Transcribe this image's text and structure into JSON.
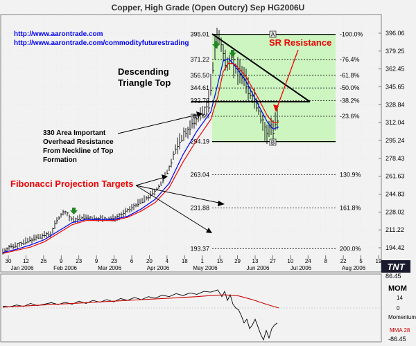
{
  "window": {
    "title": "Copper, High Grade (Open Outcry) Sep HG2006U"
  },
  "links": [
    "http://www.aarontrade.com",
    "http://www.aarontrade.com/commodityfuturestrading"
  ],
  "annotations": {
    "descending_triangle": [
      "Descending",
      "Triangle Top"
    ],
    "sr_resistance": "SR Resistance",
    "area_330": [
      "330 Area Important",
      "Overhead Resistance",
      "From Neckline of Top",
      "Formation"
    ],
    "fib_targets": "Fibonacci Projection Targets",
    "marker_a": "A",
    "marker_b": "B"
  },
  "branding": {
    "logo": "TNT"
  },
  "colors": {
    "background": "#f2f2f2",
    "fib_zone": "#ccf5c0",
    "price_bars": "#000000",
    "ma_fast": "#0000ee",
    "ma_slow": "#ee0000",
    "annotation_red": "#ee0000",
    "link_blue": "#0000ee",
    "arrow_green": "#228822"
  },
  "chart_data": [
    {
      "type": "bar",
      "title": "Copper, High Grade (Open Outcry) Sep HG2006U",
      "y_ticks": [
        "396.06",
        "379.25",
        "362.45",
        "345.65",
        "328.84",
        "312.04",
        "295.24",
        "278.43",
        "261.63",
        "244.83",
        "228.02",
        "211.22",
        "194.42"
      ],
      "ylim": [
        186,
        404
      ],
      "x_ticks": [
        "30",
        "12",
        "26",
        "9",
        "23",
        "9",
        "23",
        "6",
        "20",
        "4",
        "18",
        "1",
        "15",
        "29",
        "13",
        "27",
        "10",
        "24",
        "8",
        "22",
        "5",
        "19"
      ],
      "x_months": [
        "Jan 2006",
        "Feb 2006",
        "Mar 2006",
        "Apr 2006",
        "May 2006",
        "Jun 2006",
        "Jul 2006",
        "Aug 2006"
      ],
      "fib_levels": [
        {
          "price": "395.01",
          "pct": "-100.0%"
        },
        {
          "price": "371.22",
          "pct": "-76.4%"
        },
        {
          "price": "356.50",
          "pct": "-61.8%"
        },
        {
          "price": "344.61",
          "pct": "-50.0%"
        },
        {
          "price": "332.72",
          "pct": "-38.2%"
        },
        {
          "price": "317.99",
          "pct": "-23.6%"
        },
        {
          "price": "294.19",
          "pct": ""
        },
        {
          "price": "263.04",
          "pct": "130.9%"
        },
        {
          "price": "231.88",
          "pct": "161.8%"
        },
        {
          "price": "193.37",
          "pct": "200.0%"
        }
      ],
      "price_path": [
        [
          0,
          191
        ],
        [
          10,
          195
        ],
        [
          20,
          197
        ],
        [
          30,
          199
        ],
        [
          40,
          202
        ],
        [
          50,
          204
        ],
        [
          60,
          206
        ],
        [
          70,
          208
        ],
        [
          75,
          216
        ],
        [
          80,
          222
        ],
        [
          85,
          226
        ],
        [
          90,
          228
        ],
        [
          95,
          224
        ],
        [
          100,
          220
        ],
        [
          110,
          222
        ],
        [
          120,
          223
        ],
        [
          130,
          222
        ],
        [
          140,
          222
        ],
        [
          150,
          221
        ],
        [
          160,
          222
        ],
        [
          170,
          225
        ],
        [
          180,
          229
        ],
        [
          190,
          234
        ],
        [
          200,
          238
        ],
        [
          210,
          242
        ],
        [
          220,
          248
        ],
        [
          230,
          256
        ],
        [
          240,
          270
        ],
        [
          250,
          288
        ],
        [
          260,
          300
        ],
        [
          270,
          307
        ],
        [
          280,
          316
        ],
        [
          290,
          323
        ],
        [
          297,
          330
        ],
        [
          302,
          355
        ],
        [
          306,
          385
        ],
        [
          310,
          393
        ],
        [
          314,
          388
        ],
        [
          318,
          376
        ],
        [
          322,
          368
        ],
        [
          326,
          371
        ],
        [
          330,
          374
        ],
        [
          334,
          365
        ],
        [
          338,
          359
        ],
        [
          342,
          362
        ],
        [
          346,
          357
        ],
        [
          350,
          351
        ],
        [
          354,
          344
        ],
        [
          358,
          338
        ],
        [
          362,
          336
        ],
        [
          366,
          330
        ],
        [
          370,
          323
        ],
        [
          374,
          314
        ],
        [
          378,
          304
        ],
        [
          382,
          298
        ],
        [
          386,
          312
        ],
        [
          390,
          306
        ],
        [
          394,
          315
        ],
        [
          398,
          318
        ]
      ],
      "series": [
        {
          "name": "",
          "values": [
            [
              0,
              190
            ],
            [
              20,
              193
            ],
            [
              40,
              197
            ],
            [
              60,
              202
            ],
            [
              80,
              210
            ],
            [
              100,
              218
            ],
            [
              120,
              221
            ],
            [
              140,
              221
            ],
            [
              160,
              221
            ],
            [
              180,
              224
            ],
            [
              200,
              231
            ],
            [
              220,
              240
            ],
            [
              240,
              255
            ],
            [
              260,
              282
            ],
            [
              280,
              304
            ],
            [
              300,
              322
            ],
            [
              310,
              348
            ],
            [
              318,
              370
            ],
            [
              326,
              372
            ],
            [
              334,
              366
            ],
            [
              342,
              359
            ],
            [
              350,
              352
            ],
            [
              358,
              342
            ],
            [
              366,
              332
            ],
            [
              374,
              322
            ],
            [
              382,
              312
            ],
            [
              390,
              306
            ],
            [
              398,
              308
            ]
          ]
        },
        {
          "name": "",
          "values": [
            [
              0,
              189
            ],
            [
              20,
              192
            ],
            [
              40,
              195
            ],
            [
              60,
              200
            ],
            [
              80,
              208
            ],
            [
              100,
              216
            ],
            [
              120,
              220
            ],
            [
              140,
              220
            ],
            [
              160,
              220
            ],
            [
              180,
              223
            ],
            [
              200,
              229
            ],
            [
              220,
              237
            ],
            [
              240,
              251
            ],
            [
              260,
              275
            ],
            [
              280,
              296
            ],
            [
              300,
              315
            ],
            [
              310,
              336
            ],
            [
              318,
              360
            ],
            [
              326,
              368
            ],
            [
              334,
              367
            ],
            [
              342,
              362
            ],
            [
              350,
              356
            ],
            [
              358,
              347
            ],
            [
              366,
              338
            ],
            [
              374,
              328
            ],
            [
              382,
              318
            ],
            [
              390,
              312
            ],
            [
              398,
              312
            ]
          ]
        }
      ]
    },
    {
      "type": "line",
      "title": "MOM",
      "labels": [
        "86.45",
        "14",
        "0",
        "Momentum",
        "MMA 28",
        "-86.45"
      ],
      "ylim": [
        -86.45,
        86.45
      ],
      "series": [
        {
          "name": "Momentum",
          "values": [
            [
              0,
              5
            ],
            [
              10,
              3
            ],
            [
              20,
              8
            ],
            [
              30,
              4
            ],
            [
              40,
              12
            ],
            [
              50,
              6
            ],
            [
              60,
              10
            ],
            [
              70,
              14
            ],
            [
              80,
              9
            ],
            [
              90,
              15
            ],
            [
              100,
              10
            ],
            [
              110,
              18
            ],
            [
              120,
              12
            ],
            [
              130,
              20
            ],
            [
              140,
              15
            ],
            [
              150,
              22
            ],
            [
              160,
              16
            ],
            [
              170,
              25
            ],
            [
              180,
              20
            ],
            [
              190,
              28
            ],
            [
              200,
              22
            ],
            [
              210,
              30
            ],
            [
              220,
              26
            ],
            [
              230,
              34
            ],
            [
              240,
              30
            ],
            [
              250,
              38
            ],
            [
              260,
              33
            ],
            [
              270,
              40
            ],
            [
              280,
              36
            ],
            [
              290,
              44
            ],
            [
              300,
              42
            ],
            [
              310,
              48
            ],
            [
              316,
              30
            ],
            [
              320,
              44
            ],
            [
              324,
              20
            ],
            [
              328,
              35
            ],
            [
              332,
              10
            ],
            [
              336,
              0
            ],
            [
              340,
              -5
            ],
            [
              344,
              -20
            ],
            [
              348,
              -40
            ],
            [
              352,
              -30
            ],
            [
              356,
              -55
            ],
            [
              360,
              -45
            ],
            [
              364,
              -30
            ],
            [
              368,
              -50
            ],
            [
              372,
              -70
            ],
            [
              376,
              -85
            ],
            [
              380,
              -60
            ],
            [
              384,
              -80
            ],
            [
              388,
              -55
            ],
            [
              392,
              -45
            ],
            [
              396,
              -40
            ]
          ]
        },
        {
          "name": "MMA 28",
          "values": [
            [
              0,
              2
            ],
            [
              40,
              6
            ],
            [
              80,
              10
            ],
            [
              120,
              14
            ],
            [
              160,
              18
            ],
            [
              200,
              22
            ],
            [
              240,
              26
            ],
            [
              280,
              30
            ],
            [
              300,
              33
            ],
            [
              320,
              35
            ],
            [
              340,
              32
            ],
            [
              360,
              22
            ],
            [
              380,
              10
            ],
            [
              398,
              0
            ]
          ]
        }
      ]
    }
  ]
}
